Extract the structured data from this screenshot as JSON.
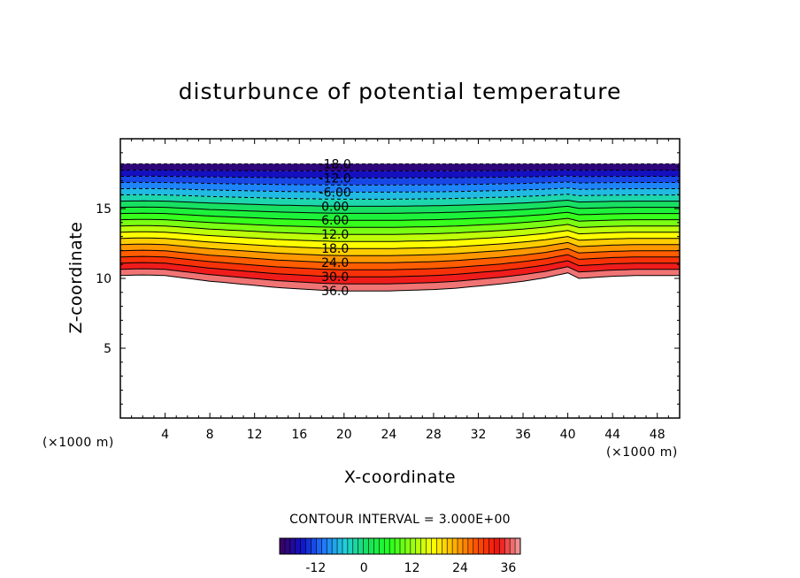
{
  "chart_data": {
    "type": "contour",
    "title": "disturbunce of potential temperature",
    "xlabel": "X-coordinate",
    "ylabel": "Z-coordinate",
    "x_unit_left": "(×1000 m)",
    "x_unit_right": "(×1000 m)",
    "xlim": [
      0,
      50
    ],
    "ylim": [
      0,
      20
    ],
    "x_ticks": [
      4,
      8,
      12,
      16,
      20,
      24,
      28,
      32,
      36,
      40,
      44,
      48
    ],
    "x_tick_labels": [
      "4",
      "8",
      "12",
      "16",
      "20",
      "24",
      "28",
      "32",
      "36",
      "40",
      "44",
      "48"
    ],
    "y_ticks": [
      5,
      10,
      15
    ],
    "y_tick_labels": [
      "5",
      "10",
      "15"
    ],
    "contour_interval_text": "CONTOUR INTERVAL = 3.000E+00",
    "contour_interval": 3.0,
    "value_range": [
      -18,
      36
    ],
    "contour_levels": [
      -18,
      -15,
      -12,
      -9,
      -6,
      -3,
      0,
      3,
      6,
      9,
      12,
      15,
      18,
      21,
      24,
      27,
      30,
      33,
      36
    ],
    "contour_labels": [
      {
        "text": "-18.0",
        "value": -18
      },
      {
        "text": "-12.0",
        "value": -12
      },
      {
        "text": "-6.00",
        "value": -6
      },
      {
        "text": "0.00",
        "value": 0
      },
      {
        "text": "6.00",
        "value": 6
      },
      {
        "text": "12.0",
        "value": 12
      },
      {
        "text": "18.0",
        "value": 18
      },
      {
        "text": "24.0",
        "value": 24
      },
      {
        "text": "30.0",
        "value": 30
      },
      {
        "text": "36.0",
        "value": 36
      }
    ],
    "field_top_z_km": 18.2,
    "field_bottom_z_km": [
      [
        0,
        10.2
      ],
      [
        2,
        10.25
      ],
      [
        4,
        10.2
      ],
      [
        6,
        10.0
      ],
      [
        8,
        9.8
      ],
      [
        10,
        9.65
      ],
      [
        12,
        9.5
      ],
      [
        14,
        9.35
      ],
      [
        16,
        9.25
      ],
      [
        18,
        9.15
      ],
      [
        20,
        9.1
      ],
      [
        22,
        9.1
      ],
      [
        24,
        9.1
      ],
      [
        26,
        9.15
      ],
      [
        28,
        9.2
      ],
      [
        30,
        9.3
      ],
      [
        32,
        9.45
      ],
      [
        34,
        9.6
      ],
      [
        36,
        9.8
      ],
      [
        38,
        10.05
      ],
      [
        40,
        10.4
      ],
      [
        41,
        10.0
      ],
      [
        42,
        10.05
      ],
      [
        44,
        10.15
      ],
      [
        46,
        10.2
      ],
      [
        48,
        10.2
      ],
      [
        50,
        10.2
      ]
    ],
    "contour_dashed_for_negative": true,
    "colorbar_ticks": [
      "-12",
      "0",
      "12",
      "24",
      "36"
    ],
    "colorbar_tick_values": [
      -12,
      0,
      12,
      24,
      36
    ],
    "colormap": [
      "#3d005a",
      "#1010c8",
      "#1e78ff",
      "#20d0d8",
      "#18e060",
      "#20ff20",
      "#90ff10",
      "#ffff00",
      "#ffb000",
      "#ff5000",
      "#f01010",
      "#f0a0a0"
    ],
    "grid": false,
    "legend": "colorbar-bottom"
  }
}
